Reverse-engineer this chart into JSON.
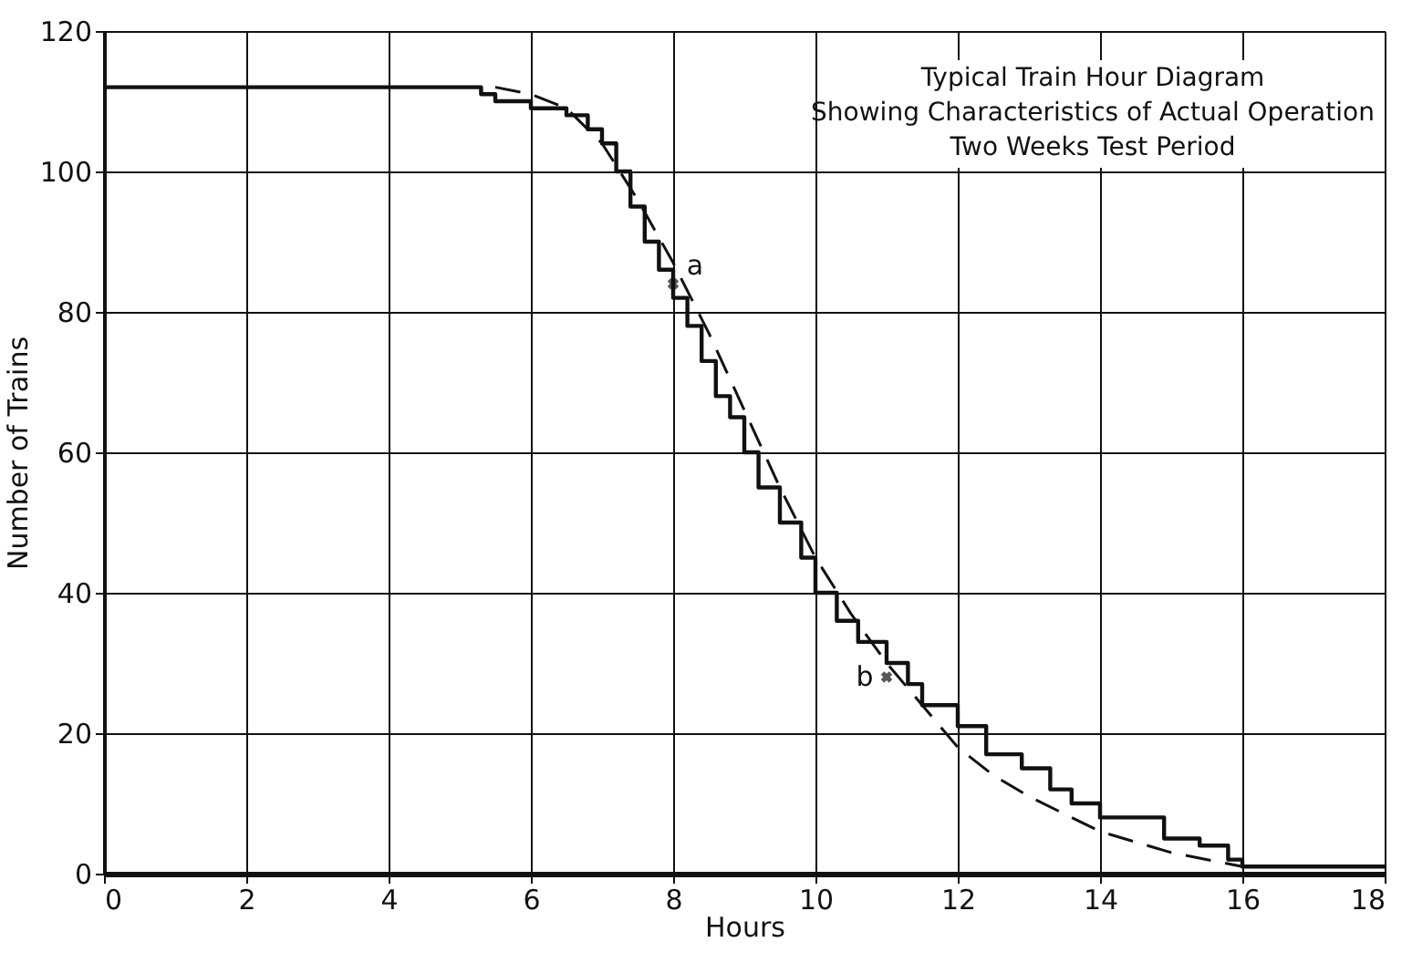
{
  "chart_data": {
    "type": "line",
    "title": "Typical Train Hour Diagram\nShowing Characteristics of Actual Operation\nTwo Weeks Test Period",
    "xlabel": "Hours",
    "ylabel": "Number of Trains",
    "xlim": [
      0,
      18
    ],
    "xticks": [
      0,
      2,
      4,
      6,
      8,
      10,
      12,
      14,
      16,
      18
    ],
    "ylim": [
      0,
      120
    ],
    "yticks": [
      0,
      20,
      40,
      60,
      80,
      100,
      120
    ],
    "grid": true,
    "legend": false,
    "series": [
      {
        "type": "step",
        "color": "#111111",
        "line_style": "solid",
        "x": [
          0,
          5.3,
          5.5,
          6.0,
          6.5,
          6.8,
          7.0,
          7.2,
          7.4,
          7.6,
          7.8,
          8.0,
          8.2,
          8.4,
          8.6,
          8.8,
          9.0,
          9.2,
          9.5,
          9.8,
          10.0,
          10.3,
          10.6,
          11.0,
          11.3,
          11.5,
          12.0,
          12.4,
          12.9,
          13.3,
          13.6,
          14.0,
          14.9,
          15.4,
          15.8,
          16.0,
          18
        ],
        "values": [
          112,
          111,
          110,
          109,
          108,
          106,
          104,
          100,
          95,
          90,
          86,
          82,
          78,
          73,
          68,
          65,
          60,
          55,
          50,
          45,
          40,
          36,
          33,
          30,
          27,
          24,
          21,
          17,
          15,
          12,
          10,
          8,
          5,
          4,
          2,
          1,
          1
        ]
      },
      {
        "type": "line",
        "color": "#111111",
        "line_style": "dashed",
        "x": [
          5.5,
          6.0,
          6.5,
          7.0,
          7.5,
          8.0,
          8.5,
          9.0,
          9.5,
          10.0,
          10.5,
          11.0,
          11.5,
          12.0,
          12.5,
          13.0,
          14.0,
          15.0,
          16.0
        ],
        "values": [
          112,
          111,
          109,
          104,
          96,
          87,
          77,
          66,
          55,
          45,
          37,
          30,
          24,
          18,
          14,
          11,
          6,
          3,
          1
        ]
      }
    ],
    "annotations": [
      {
        "text": "a",
        "x": 8.0,
        "y": 84
      },
      {
        "text": "b",
        "x": 11.0,
        "y": 28
      }
    ]
  }
}
